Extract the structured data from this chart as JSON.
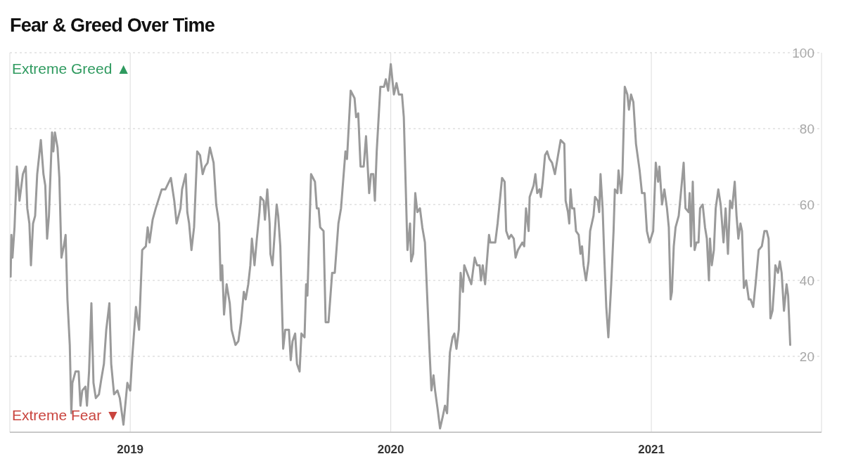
{
  "chart_data": {
    "type": "line",
    "title": "Fear & Greed Over Time",
    "x": [
      2018.541,
      2018.544,
      2018.548,
      2018.556,
      2018.565,
      2018.575,
      2018.588,
      2018.599,
      2018.605,
      2018.613,
      2018.619,
      2018.627,
      2018.635,
      2018.643,
      2018.657,
      2018.667,
      2018.674,
      2018.681,
      2018.688,
      2018.7,
      2018.705,
      2018.711,
      2018.721,
      2018.728,
      2018.736,
      2018.745,
      2018.752,
      2018.759,
      2018.768,
      2018.774,
      2018.778,
      2018.79,
      2018.802,
      2018.809,
      2018.816,
      2018.828,
      2018.834,
      2018.842,
      2018.851,
      2018.859,
      2018.868,
      2018.88,
      2018.889,
      2018.899,
      2018.908,
      2018.92,
      2018.927,
      2018.938,
      2018.951,
      2018.96,
      2018.974,
      2018.989,
      2019.0,
      2019.008,
      2019.022,
      2019.034,
      2019.046,
      2019.06,
      2019.067,
      2019.074,
      2019.086,
      2019.098,
      2019.121,
      2019.135,
      2019.156,
      2019.169,
      2019.178,
      2019.193,
      2019.199,
      2019.213,
      2019.219,
      2019.226,
      2019.235,
      2019.245,
      2019.257,
      2019.268,
      2019.278,
      2019.287,
      2019.297,
      2019.306,
      2019.32,
      2019.33,
      2019.341,
      2019.347,
      2019.353,
      2019.36,
      2019.37,
      2019.382,
      2019.389,
      2019.404,
      2019.415,
      2019.425,
      2019.436,
      2019.443,
      2019.453,
      2019.461,
      2019.467,
      2019.477,
      2019.486,
      2019.496,
      2019.5,
      2019.512,
      2019.517,
      2019.526,
      2019.535,
      2019.538,
      2019.546,
      2019.562,
      2019.568,
      2019.576,
      2019.587,
      2019.595,
      2019.609,
      2019.616,
      2019.623,
      2019.633,
      2019.64,
      2019.65,
      2019.657,
      2019.669,
      2019.675,
      2019.68,
      2019.694,
      2019.709,
      2019.716,
      2019.723,
      2019.729,
      2019.742,
      2019.75,
      2019.761,
      2019.775,
      2019.785,
      2019.799,
      2019.809,
      2019.826,
      2019.832,
      2019.846,
      2019.861,
      2019.867,
      2019.875,
      2019.884,
      2019.896,
      2019.905,
      2019.917,
      2019.924,
      2019.933,
      2019.939,
      2019.946,
      2019.96,
      2019.974,
      2019.981,
      2019.99,
      2020.0,
      2020.012,
      2020.022,
      2020.031,
      2020.043,
      2020.05,
      2020.064,
      2020.074,
      2020.078,
      2020.086,
      2020.094,
      2020.102,
      2020.112,
      2020.121,
      2020.131,
      2020.149,
      2020.156,
      2020.164,
      2020.17,
      2020.18,
      2020.189,
      2020.199,
      2020.208,
      2020.216,
      2020.227,
      2020.237,
      2020.244,
      2020.252,
      2020.261,
      2020.268,
      2020.277,
      2020.282,
      2020.293,
      2020.309,
      2020.322,
      2020.331,
      2020.341,
      2020.346,
      2020.353,
      2020.362,
      2020.377,
      2020.382,
      2020.401,
      2020.41,
      2020.42,
      2020.427,
      2020.437,
      2020.443,
      2020.453,
      2020.462,
      2020.472,
      2020.479,
      2020.488,
      2020.505,
      2020.512,
      2020.519,
      2020.529,
      2020.533,
      2020.548,
      2020.555,
      2020.562,
      2020.571,
      2020.576,
      2020.583,
      2020.592,
      2020.6,
      2020.609,
      2020.619,
      2020.63,
      2020.642,
      2020.652,
      2020.666,
      2020.671,
      2020.68,
      2020.685,
      2020.69,
      2020.696,
      2020.704,
      2020.711,
      2020.721,
      2020.728,
      2020.734,
      2020.74,
      2020.749,
      2020.759,
      2020.765,
      2020.778,
      2020.784,
      2020.794,
      2020.8,
      2020.805,
      2020.813,
      2020.819,
      2020.827,
      2020.835,
      2020.846,
      2020.855,
      2020.86,
      2020.87,
      2020.874,
      2020.884,
      2020.889,
      2020.898,
      2020.908,
      2020.914,
      2020.922,
      2020.931,
      2020.941,
      2020.955,
      2020.964,
      2020.974,
      2020.983,
      2020.993,
      2021.007,
      2021.017,
      2021.026,
      2021.031,
      2021.041,
      2021.05,
      2021.06,
      2021.067,
      2021.074,
      2021.079,
      2021.086,
      2021.093,
      2021.105,
      2021.112,
      2021.124,
      2021.131,
      2021.143,
      2021.147,
      2021.152,
      2021.159,
      2021.166,
      2021.173,
      2021.181,
      2021.187,
      2021.197,
      2021.206,
      2021.213,
      2021.221,
      2021.225,
      2021.232,
      2021.24,
      2021.247,
      2021.257,
      2021.266,
      2021.277,
      2021.285,
      2021.294,
      2021.302,
      2021.31,
      2021.32,
      2021.327,
      2021.334,
      2021.342,
      2021.348,
      2021.355,
      2021.364,
      2021.374,
      2021.381,
      2021.391,
      2021.4,
      2021.412,
      2021.424,
      2021.434,
      2021.443,
      2021.45,
      2021.457,
      2021.465,
      2021.472,
      2021.476,
      2021.486,
      2021.493,
      2021.5,
      2021.509,
      2021.519,
      2021.525,
      2021.533
    ],
    "values": [
      41,
      52,
      46,
      54,
      70,
      61,
      68,
      70,
      59,
      55,
      44,
      55,
      57,
      68,
      77,
      68,
      65,
      51,
      57,
      79,
      74,
      79,
      75,
      67,
      46,
      49,
      52,
      35,
      23,
      5,
      13,
      16,
      16,
      7,
      11,
      12,
      7,
      16,
      34,
      13,
      9,
      10,
      14,
      18,
      27,
      34,
      18,
      10,
      11,
      9,
      2,
      13,
      11,
      20,
      33,
      27,
      48,
      49,
      54,
      50,
      56,
      59,
      64,
      64,
      67,
      61,
      55,
      59,
      64,
      68,
      58,
      55,
      48,
      54,
      74,
      73,
      68,
      70,
      71,
      75,
      71,
      60,
      55,
      40,
      44,
      31,
      39,
      34,
      27,
      23,
      24,
      29,
      37,
      35,
      39,
      44,
      51,
      44,
      51,
      58,
      62,
      61,
      56,
      64,
      55,
      47,
      44,
      60,
      57,
      49,
      22,
      27,
      27,
      19,
      24,
      26,
      18,
      16,
      26,
      25,
      39,
      36,
      68,
      66,
      59,
      59,
      54,
      53,
      29,
      29,
      42,
      42,
      55,
      59,
      74,
      72,
      90,
      88,
      83,
      84,
      70,
      70,
      78,
      63,
      68,
      68,
      61,
      74,
      91,
      91,
      93,
      90,
      97,
      89,
      92,
      89,
      89,
      83,
      48,
      55,
      45,
      47,
      63,
      58,
      59,
      54,
      50,
      21,
      11,
      15,
      11,
      6,
      1,
      4,
      7,
      5,
      21,
      25,
      26,
      22,
      27,
      42,
      37,
      44,
      42,
      39,
      46,
      44,
      44,
      40,
      44,
      39,
      52,
      50,
      50,
      55,
      62,
      67,
      66,
      53,
      51,
      52,
      51,
      46,
      48,
      50,
      49,
      59,
      53,
      62,
      65,
      68,
      63,
      64,
      62,
      66,
      73,
      74,
      72,
      71,
      68,
      73,
      77,
      76,
      61,
      58,
      55,
      64,
      59,
      59,
      53,
      52,
      47,
      49,
      44,
      40,
      45,
      53,
      57,
      62,
      61,
      58,
      68,
      59,
      47,
      33,
      25,
      39,
      53,
      64,
      63,
      69,
      63,
      68,
      91,
      89,
      85,
      89,
      87,
      76,
      69,
      63,
      63,
      53,
      50,
      53,
      71,
      66,
      70,
      60,
      64,
      59,
      54,
      35,
      37,
      49,
      54,
      57,
      62,
      71,
      59,
      58,
      63,
      49,
      66,
      48,
      50,
      50,
      59,
      60,
      54,
      51,
      40,
      51,
      44,
      48,
      59,
      64,
      60,
      50,
      59,
      47,
      61,
      59,
      66,
      57,
      51,
      55,
      53,
      38,
      40,
      35,
      35,
      33,
      39,
      48,
      49,
      53,
      53,
      51,
      30,
      32,
      39,
      44,
      42,
      45,
      42,
      32,
      39,
      36,
      23
    ],
    "color": "#9a9a9a",
    "xlim": [
      2018.538,
      2021.653
    ],
    "xticks": [
      2019,
      2020,
      2021
    ],
    "ylim": [
      0,
      100
    ],
    "yticks": [
      20,
      40,
      60,
      80,
      100
    ],
    "grid": true,
    "annotations": [
      "Extreme Greed ▲",
      "Extreme Fear ▼"
    ]
  }
}
